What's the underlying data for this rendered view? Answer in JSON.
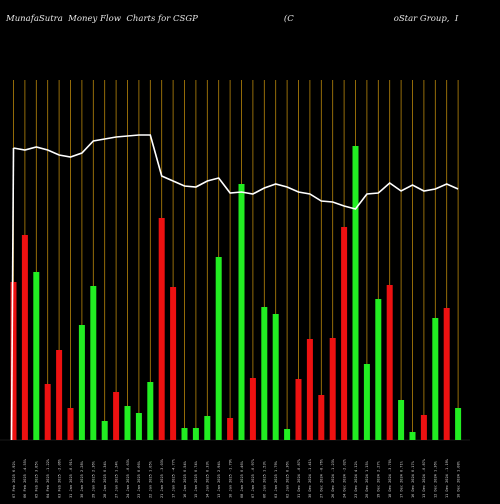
{
  "title": {
    "left": "MunafaSutra  Money Flow  Charts for CSGP",
    "middle": "(C",
    "right": "oStar Group,  I"
  },
  "chart_data": {
    "type": "bar",
    "title": "MunafaSutra  Money Flow  Charts for CSGP",
    "colors": {
      "up": "#22ee22",
      "down": "#ee1111",
      "line": "#ffffff",
      "grid": "#b8860b",
      "background": "#000000"
    },
    "categories": [
      "07 Feb 2025 6.92%",
      "06 Feb 2025 -4.55%",
      "05 Feb 2025 3.85%",
      "04 Feb 2025 -1.22%",
      "03 Feb 2025 -2.06%",
      "31 Jan 2025 -0.91%",
      "30 Jan 2025 2.28%",
      "29 Jan 2025 2.36%",
      "28 Jan 2025 0.34%",
      "27 Jan 2025 1.24%",
      "24 Jan 2025 -0.63%",
      "23 Jan 2025 0.66%",
      "22 Jan 2025 1.05%",
      "21 Jan 2025 -3.03%",
      "17 Jan 2025 -4.77%",
      "16 Jan 2025 0.54%",
      "15 Jan 2025 0.74%",
      "14 Jan 2025 0.33%",
      "13 Jan 2025 2.94%",
      "10 Jan 2025 -1.79%",
      "08 Jan 2025 0.46%",
      "07 Jan 2025 -0.97%",
      "06 Jan 2025 1.53%",
      "03 Jan 2025 1.79%",
      "02 Jan 2025 0.36%",
      "31 Dec 2024 -0.87%",
      "30 Dec 2024 -1.41%",
      "27 Dec 2024 -0.76%",
      "26 Dec 2024 -1.23%",
      "24 Dec 2024 -2.02%",
      "23 Dec 2024 4.12%",
      "20 Dec 2024 1.15%",
      "19 Dec 2024 2.27%",
      "18 Dec 2024 -3.70%",
      "17 Dec 2024 0.71%",
      "16 Dec 2024 0.17%",
      "13 Dec 2024 -0.87%",
      "12 Dec 2024 1.36%",
      "11 Dec 2024 -1.19%",
      "10 Dec 2024 1.08%"
    ],
    "bar_heights": [
      158,
      205,
      168,
      56,
      90,
      32,
      115,
      154,
      19,
      48,
      34,
      27,
      58,
      222,
      153,
      12,
      12,
      24,
      183,
      22,
      256,
      62,
      133,
      126,
      11,
      61,
      101,
      45,
      102,
      213,
      294,
      76,
      141,
      155,
      40,
      8,
      25,
      122,
      132,
      32
    ],
    "bar_up": [
      false,
      false,
      true,
      false,
      false,
      false,
      true,
      true,
      true,
      false,
      true,
      true,
      true,
      false,
      false,
      true,
      true,
      true,
      true,
      false,
      true,
      false,
      true,
      true,
      true,
      false,
      false,
      false,
      false,
      false,
      true,
      true,
      true,
      false,
      true,
      true,
      false,
      true,
      false,
      true
    ],
    "line_values": [
      292,
      290,
      293,
      290,
      285,
      283,
      287,
      299,
      301,
      303,
      304,
      305,
      305,
      264,
      259,
      254,
      253,
      259,
      262,
      247,
      248,
      246,
      252,
      256,
      253,
      248,
      246,
      239,
      238,
      234,
      231,
      246,
      247,
      257,
      249,
      255,
      249,
      251,
      256,
      251
    ],
    "y_range": [
      0,
      360
    ],
    "grid": true
  }
}
